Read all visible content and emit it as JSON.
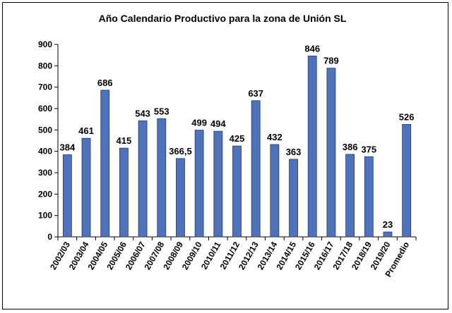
{
  "chart_data": {
    "type": "bar",
    "title": "Año Calendario Productivo para la zona de Unión SL",
    "categories": [
      "2002/03",
      "2003/04",
      "2004/05",
      "2005/06",
      "2006/07",
      "2007/08",
      "2008/09",
      "2009/10",
      "2010/11",
      "2011/12",
      "2012/13",
      "2013/14",
      "2014/15",
      "2015/16",
      "2016/17",
      "2017/18",
      "2018/19",
      "2019/20",
      "Promedio"
    ],
    "values": [
      384,
      461,
      686,
      415,
      543,
      553,
      366.5,
      499,
      494,
      425,
      637,
      432,
      363,
      846,
      789,
      386,
      375,
      23,
      526
    ],
    "data_labels": [
      "384",
      "461",
      "686",
      "415",
      "543",
      "553",
      "366,5",
      "499",
      "494",
      "425",
      "637",
      "432",
      "363",
      "846",
      "789",
      "386",
      "375",
      "23",
      "526"
    ],
    "ylim": [
      0,
      900
    ],
    "yticks": [
      0,
      100,
      200,
      300,
      400,
      500,
      600,
      700,
      800,
      900
    ],
    "bar_color": "#4F72BE",
    "bar_stroke": "#1F3A70",
    "grid": false,
    "legend": "none"
  }
}
